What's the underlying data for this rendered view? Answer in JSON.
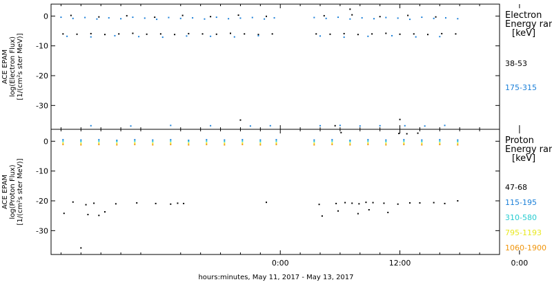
{
  "chart_data": [
    {
      "type": "scatter",
      "panel": "electron",
      "ylabel_lines": [
        "ACE EPAM",
        "log(Electron Flux)",
        "[1/(cm²s ster MeV)]"
      ],
      "ylim": [
        -38,
        4
      ],
      "yticks": [
        0,
        -10,
        -20,
        -30
      ],
      "xlim": [
        -23,
        22
      ],
      "xticks": [
        0,
        12,
        24
      ],
      "grid": false,
      "legend": {
        "title_lines": [
          "Electron",
          "Energy ran",
          "[keV]"
        ],
        "placement": "right"
      },
      "series": [
        {
          "name": "38-53",
          "color": "#000000",
          "x": [
            -21.8,
            -20.4,
            -19.0,
            -17.6,
            -16.2,
            -14.8,
            -13.4,
            -12.0,
            -10.6,
            -9.2,
            -7.8,
            -6.4,
            -5.0,
            -3.6,
            -2.2,
            -0.8,
            3.6,
            5.0,
            6.4,
            7.8,
            9.2,
            10.6,
            12.0,
            13.4,
            14.8,
            16.2,
            17.6,
            -21.0,
            -18.2,
            -15.4,
            -12.6,
            -9.8,
            -7.0,
            -4.2,
            -1.4,
            4.4,
            7.2,
            10.0,
            12.8,
            15.6,
            -4.0,
            7.0,
            12.0,
            5.5
          ],
          "y": [
            -6.0,
            -6.1,
            -5.9,
            -6.2,
            -6.0,
            -5.8,
            -6.1,
            -6.0,
            -6.2,
            -5.9,
            -6.0,
            -6.1,
            -5.8,
            -6.0,
            -6.2,
            -6.0,
            -6.0,
            -6.1,
            -5.9,
            -6.2,
            -6.0,
            -5.8,
            -6.1,
            -6.0,
            -6.2,
            -5.9,
            -6.0,
            0.2,
            -0.3,
            0.1,
            -0.4,
            0.2,
            -0.2,
            0.3,
            -0.1,
            0.1,
            0.4,
            -0.2,
            0.2,
            -0.3,
            -34.9,
            2.3,
            -34.7,
            -36.8
          ]
        },
        {
          "name": "175-315",
          "color": "#1a7fd8",
          "x": [
            -22.0,
            -20.8,
            -19.6,
            -18.4,
            -17.2,
            -16.0,
            -14.8,
            -13.6,
            -12.4,
            -11.2,
            -10.0,
            -8.8,
            -7.6,
            -6.4,
            -5.2,
            -4.0,
            -2.8,
            -1.6,
            -0.6,
            3.4,
            4.6,
            5.8,
            7.0,
            8.2,
            9.4,
            10.6,
            11.8,
            13.0,
            14.2,
            15.4,
            16.6,
            17.8,
            -21.4,
            -19.0,
            -16.6,
            -14.2,
            -11.8,
            -9.4,
            -7.0,
            -4.6,
            -2.2,
            4.0,
            6.4,
            8.8,
            11.2,
            13.6,
            16.0,
            -19.0,
            -15.0,
            -11.0,
            -7.0,
            -3.0,
            -1.0,
            4.0,
            6.0,
            8.0,
            10.0,
            12.5,
            14.5,
            16.5
          ],
          "y": [
            -0.4,
            -0.8,
            -0.5,
            -1.0,
            -0.6,
            -0.9,
            -0.4,
            -0.7,
            -1.1,
            -0.5,
            -0.8,
            -0.6,
            -1.0,
            -0.4,
            -0.9,
            -0.7,
            -0.5,
            -1.0,
            -0.6,
            -0.5,
            -0.8,
            -0.4,
            -1.0,
            -0.6,
            -0.9,
            -0.5,
            -0.7,
            -1.1,
            -0.4,
            -0.8,
            -0.6,
            -0.9,
            -6.8,
            -7.0,
            -6.6,
            -6.9,
            -7.1,
            -6.7,
            -6.8,
            -7.0,
            -6.6,
            -6.7,
            -7.1,
            -6.8,
            -6.6,
            -7.0,
            -6.9,
            -36.8,
            -36.9,
            -36.7,
            -36.8,
            -36.9,
            -36.8,
            -36.8,
            -36.7,
            -36.9,
            -36.8,
            -36.8,
            -36.9,
            -36.7
          ]
        }
      ]
    },
    {
      "type": "scatter",
      "panel": "proton",
      "ylabel_lines": [
        "ACE EPAM",
        "log(Proton Flux)",
        "[1/(cm²s ster MeV)]"
      ],
      "ylim": [
        -38,
        4
      ],
      "yticks": [
        0,
        -10,
        -20,
        -30
      ],
      "xlim": [
        -23,
        22
      ],
      "xticks": [
        0,
        12,
        24
      ],
      "xtick_labels": [
        "0:00",
        "12:00",
        "0:00"
      ],
      "xlabel": "hours:minutes, May 11, 2017 - May 13, 2017",
      "grid": false,
      "legend": {
        "title_lines": [
          "Proton",
          "Energy ran",
          "[keV]"
        ],
        "placement": "right"
      },
      "series": [
        {
          "name": "47-68",
          "color": "#000000",
          "x": [
            -20.8,
            -19.5,
            -18.7,
            -16.5,
            -14.4,
            -12.5,
            -11.0,
            -10.3,
            -9.7,
            -1.4,
            3.9,
            5.6,
            6.5,
            7.2,
            7.9,
            8.6,
            9.3,
            10.4,
            11.8,
            13.0,
            14.0,
            15.4,
            16.5,
            17.8,
            -21.7,
            -19.3,
            -18.2,
            -17.6,
            4.2,
            5.8,
            7.8,
            8.9,
            10.8,
            6.1,
            13.8,
            11.9,
            12.7,
            -20.0
          ],
          "y": [
            -20.4,
            -21.3,
            -20.8,
            -21.0,
            -20.7,
            -20.9,
            -21.1,
            -20.8,
            -20.9,
            -20.5,
            -21.2,
            -20.9,
            -20.6,
            -20.8,
            -21.0,
            -20.5,
            -20.6,
            -20.8,
            -21.1,
            -20.7,
            -20.7,
            -20.6,
            -20.9,
            -20.0,
            -24.2,
            -24.6,
            -24.9,
            -23.7,
            -25.1,
            -23.4,
            -24.3,
            -23.0,
            -23.9,
            2.9,
            2.7,
            2.6,
            2.5,
            -35.8
          ]
        },
        {
          "name": "115-195",
          "color": "#1a7fd8",
          "x": [
            -21.8,
            -20.0,
            -18.2,
            -16.4,
            -14.6,
            -12.8,
            -11.0,
            -9.2,
            -7.4,
            -5.6,
            -3.8,
            -2.0,
            -0.4,
            3.4,
            5.2,
            7.0,
            8.8,
            10.6,
            12.4,
            14.2,
            16.0,
            17.8
          ],
          "y": [
            0.5,
            0.4,
            0.5,
            0.3,
            0.5,
            0.4,
            0.5,
            0.3,
            0.5,
            0.4,
            0.5,
            0.4,
            0.5,
            0.4,
            0.5,
            0.3,
            0.5,
            0.4,
            0.5,
            0.4,
            0.5,
            0.4
          ]
        },
        {
          "name": "310-580",
          "color": "#26cbd0",
          "x": [
            -21.8,
            -20.0,
            -18.2,
            -16.4,
            -14.6,
            -12.8,
            -11.0,
            -9.2,
            -7.4,
            -5.6,
            -3.8,
            -2.0,
            -0.4,
            3.4,
            5.2,
            7.0,
            8.8,
            10.6,
            12.4,
            14.2,
            16.0,
            17.8
          ],
          "y": [
            0.0,
            -0.1,
            0.0,
            -0.1,
            0.0,
            -0.1,
            0.0,
            -0.1,
            0.0,
            -0.1,
            0.0,
            -0.1,
            0.0,
            -0.1,
            0.0,
            -0.1,
            0.0,
            -0.1,
            0.0,
            -0.1,
            0.0,
            -0.1
          ]
        },
        {
          "name": "795-1193",
          "color": "#e8e81e",
          "x": [
            -21.8,
            -20.0,
            -18.2,
            -16.4,
            -14.6,
            -12.8,
            -11.0,
            -9.2,
            -7.4,
            -5.6,
            -3.8,
            -2.0,
            -0.4,
            3.4,
            5.2,
            7.0,
            8.8,
            10.6,
            12.4,
            14.2,
            16.0,
            17.8
          ],
          "y": [
            -0.6,
            -0.7,
            -0.6,
            -0.7,
            -0.6,
            -0.7,
            -0.6,
            -0.7,
            -0.6,
            -0.7,
            -0.6,
            -0.7,
            -0.6,
            -0.7,
            -0.6,
            -0.7,
            -0.6,
            -0.7,
            -0.6,
            -0.7,
            -0.6,
            -0.7
          ]
        },
        {
          "name": "1060-1900",
          "color": "#f0940a",
          "x": [
            -21.8,
            -20.0,
            -18.2,
            -16.4,
            -14.6,
            -12.8,
            -11.0,
            -9.2,
            -7.4,
            -5.6,
            -3.8,
            -2.0,
            -0.4,
            3.4,
            5.2,
            7.0,
            8.8,
            10.6,
            12.4,
            14.2,
            16.0,
            17.8
          ],
          "y": [
            -1.1,
            -1.2,
            -1.1,
            -1.2,
            -1.1,
            -1.2,
            -1.1,
            -1.2,
            -1.1,
            -1.2,
            -1.1,
            -1.2,
            -1.1,
            -1.2,
            -1.1,
            -1.2,
            -1.1,
            -1.2,
            -1.1,
            -1.2,
            -1.1,
            -1.2
          ]
        }
      ]
    }
  ]
}
